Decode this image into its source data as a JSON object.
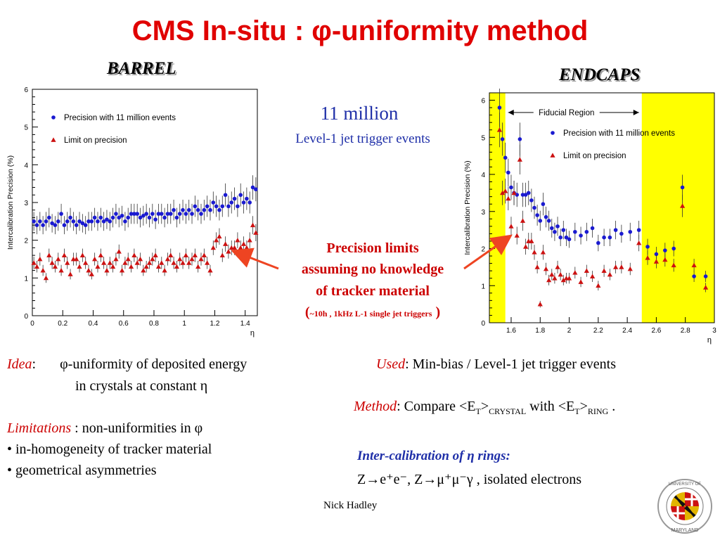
{
  "title": "CMS In-situ :  φ-uniformity method",
  "barrel_label": "BARREL",
  "endcap_label": "ENDCAPS",
  "events_big": "11 million",
  "events_small": "Level-1 jet trigger events",
  "callout": {
    "line1": "Precision limits",
    "line2": "assuming no knowledge",
    "line3": "of tracker material",
    "line4_open": "(",
    "line4_small": "~10h , 1kHz L-1 single jet triggers",
    "line4_close": " )"
  },
  "idea": {
    "key": "Idea",
    "colon": ":",
    "line1": "φ-uniformity of deposited energy",
    "line2": "in crystals at constant η"
  },
  "limitations": {
    "key": "Limitations",
    "rest": " : non-uniformities in φ",
    "bullet1": "• in-homogeneity of tracker material",
    "bullet2": "• geometrical asymmetries"
  },
  "used": {
    "key": "Used",
    "rest": ":  Min-bias / Level-1 jet trigger events"
  },
  "method": {
    "key": "Method",
    "t1": ": Compare <E",
    "s1": "T",
    "t2": ">",
    "s2": "CRYSTAL",
    "t3": " with <E",
    "s3": "T",
    "t4": ">",
    "s4": "RING",
    "t5": " ."
  },
  "intercal": {
    "heading": "Inter-calibration of η rings:",
    "body": "Z→e⁺e⁻, Z→μ⁺μ⁻γ , isolated electrons"
  },
  "author": "Nick Hadley",
  "logo_text": "UNIVERSITY OF MARYLAND",
  "colors": {
    "title": "#e00000",
    "blue_marker": "#1a1ad0",
    "red_marker": "#cc1111",
    "fiducial_outside": "#ffff00",
    "callout": "#cc0000",
    "arrow": "#ee4422"
  },
  "chart_data": [
    {
      "type": "scatter",
      "panel": "BARREL",
      "ylabel": "Intercalibration Precision (%)",
      "xlabel": "η",
      "xlim": [
        0,
        1.48
      ],
      "ylim": [
        0,
        6
      ],
      "x_ticks": [
        "0",
        "0.2",
        "0.4",
        "0.6",
        "0.8",
        "1",
        "1.2",
        "1.4"
      ],
      "y_ticks": [
        "0",
        "1",
        "2",
        "3",
        "4",
        "5",
        "6"
      ],
      "legend_position": "top-left",
      "series": [
        {
          "name": "Precision with 11 million events",
          "marker": "circle",
          "color": "#1a1ad0",
          "x": [
            0.01,
            0.03,
            0.05,
            0.07,
            0.09,
            0.11,
            0.13,
            0.15,
            0.17,
            0.19,
            0.21,
            0.23,
            0.25,
            0.27,
            0.29,
            0.31,
            0.33,
            0.35,
            0.37,
            0.39,
            0.41,
            0.43,
            0.45,
            0.47,
            0.49,
            0.51,
            0.53,
            0.55,
            0.57,
            0.59,
            0.61,
            0.63,
            0.65,
            0.67,
            0.69,
            0.71,
            0.73,
            0.75,
            0.77,
            0.79,
            0.81,
            0.83,
            0.85,
            0.87,
            0.89,
            0.91,
            0.93,
            0.95,
            0.97,
            0.99,
            1.01,
            1.03,
            1.05,
            1.07,
            1.09,
            1.11,
            1.13,
            1.15,
            1.17,
            1.19,
            1.21,
            1.23,
            1.25,
            1.27,
            1.29,
            1.31,
            1.33,
            1.35,
            1.37,
            1.39,
            1.41,
            1.43,
            1.45,
            1.47
          ],
          "y": [
            2.5,
            2.4,
            2.5,
            2.4,
            2.5,
            2.6,
            2.45,
            2.4,
            2.5,
            2.7,
            2.4,
            2.5,
            2.6,
            2.5,
            2.4,
            2.5,
            2.45,
            2.4,
            2.5,
            2.5,
            2.6,
            2.5,
            2.6,
            2.5,
            2.55,
            2.5,
            2.6,
            2.7,
            2.6,
            2.65,
            2.5,
            2.6,
            2.7,
            2.7,
            2.7,
            2.6,
            2.65,
            2.7,
            2.6,
            2.7,
            2.55,
            2.7,
            2.7,
            2.6,
            2.7,
            2.7,
            2.8,
            2.6,
            2.7,
            2.8,
            2.7,
            2.8,
            2.7,
            2.9,
            2.8,
            2.7,
            2.8,
            2.9,
            2.8,
            3.0,
            2.9,
            2.8,
            2.9,
            3.2,
            2.9,
            3.0,
            3.1,
            2.9,
            3.2,
            3.0,
            3.1,
            3.0,
            3.4,
            3.35
          ]
        },
        {
          "name": "Limit on precision",
          "marker": "triangle",
          "color": "#cc1111",
          "x": [
            0.01,
            0.03,
            0.05,
            0.07,
            0.09,
            0.11,
            0.13,
            0.15,
            0.17,
            0.19,
            0.21,
            0.23,
            0.25,
            0.27,
            0.29,
            0.31,
            0.33,
            0.35,
            0.37,
            0.39,
            0.41,
            0.43,
            0.45,
            0.47,
            0.49,
            0.51,
            0.53,
            0.55,
            0.57,
            0.59,
            0.61,
            0.63,
            0.65,
            0.67,
            0.69,
            0.71,
            0.73,
            0.75,
            0.77,
            0.79,
            0.81,
            0.83,
            0.85,
            0.87,
            0.89,
            0.91,
            0.93,
            0.95,
            0.97,
            0.99,
            1.01,
            1.03,
            1.05,
            1.07,
            1.09,
            1.11,
            1.13,
            1.15,
            1.17,
            1.19,
            1.21,
            1.23,
            1.25,
            1.27,
            1.29,
            1.31,
            1.33,
            1.35,
            1.37,
            1.39,
            1.41,
            1.43,
            1.45,
            1.47
          ],
          "y": [
            1.4,
            1.3,
            1.5,
            1.2,
            1.0,
            1.6,
            1.4,
            1.3,
            1.5,
            1.2,
            1.6,
            1.4,
            1.1,
            1.5,
            1.5,
            1.3,
            1.6,
            1.4,
            1.2,
            1.1,
            1.5,
            1.3,
            1.6,
            1.4,
            1.2,
            1.4,
            1.3,
            1.5,
            1.7,
            1.2,
            1.4,
            1.5,
            1.3,
            1.6,
            1.4,
            1.5,
            1.2,
            1.3,
            1.4,
            1.5,
            1.6,
            1.3,
            1.4,
            1.2,
            1.5,
            1.6,
            1.4,
            1.3,
            1.5,
            1.4,
            1.6,
            1.4,
            1.5,
            1.6,
            1.3,
            1.5,
            1.6,
            1.4,
            1.2,
            1.8,
            2.0,
            2.1,
            1.6,
            1.9,
            1.7,
            1.8,
            1.8,
            2.0,
            1.8,
            1.9,
            1.8,
            2.0,
            2.4,
            2.2
          ]
        }
      ]
    },
    {
      "type": "scatter",
      "panel": "ENDCAPS",
      "ylabel": "Intercalibration Precision (%)",
      "xlabel": "η",
      "xlim": [
        1.45,
        3.0
      ],
      "ylim": [
        0,
        6.2
      ],
      "x_ticks": [
        "1.6",
        "1.8",
        "2",
        "2.2",
        "2.4",
        "2.6",
        "2.8",
        "3"
      ],
      "y_ticks": [
        "0",
        "1",
        "2",
        "3",
        "4",
        "5",
        "6"
      ],
      "legend_position": "top-right",
      "fiducial_label": "Fiducial Region",
      "fiducial_range": [
        1.56,
        2.5
      ],
      "series": [
        {
          "name": "Precision with 11 million events",
          "marker": "circle",
          "color": "#1a1ad0",
          "x": [
            1.52,
            1.54,
            1.56,
            1.58,
            1.6,
            1.62,
            1.64,
            1.66,
            1.68,
            1.7,
            1.72,
            1.74,
            1.76,
            1.78,
            1.8,
            1.82,
            1.84,
            1.86,
            1.88,
            1.9,
            1.92,
            1.94,
            1.96,
            1.98,
            2.0,
            2.04,
            2.08,
            2.12,
            2.16,
            2.2,
            2.24,
            2.28,
            2.32,
            2.36,
            2.42,
            2.48,
            2.54,
            2.6,
            2.66,
            2.72,
            2.78,
            2.86,
            2.94
          ],
          "y": [
            5.8,
            4.95,
            4.45,
            4.05,
            3.65,
            3.5,
            3.45,
            4.95,
            3.45,
            3.45,
            3.5,
            3.3,
            3.1,
            2.9,
            2.75,
            3.2,
            2.85,
            2.75,
            2.55,
            2.45,
            2.6,
            2.3,
            2.5,
            2.3,
            2.25,
            2.45,
            2.35,
            2.45,
            2.55,
            2.15,
            2.3,
            2.3,
            2.5,
            2.4,
            2.45,
            2.5,
            2.05,
            1.85,
            1.95,
            2.0,
            3.65,
            1.25,
            1.25
          ]
        },
        {
          "name": "Limit on precision",
          "marker": "triangle",
          "color": "#cc1111",
          "x": [
            1.52,
            1.54,
            1.56,
            1.58,
            1.6,
            1.62,
            1.64,
            1.66,
            1.68,
            1.7,
            1.72,
            1.74,
            1.76,
            1.78,
            1.8,
            1.82,
            1.84,
            1.86,
            1.88,
            1.9,
            1.92,
            1.94,
            1.96,
            1.98,
            2.0,
            2.04,
            2.08,
            2.12,
            2.16,
            2.2,
            2.24,
            2.28,
            2.32,
            2.36,
            2.42,
            2.48,
            2.54,
            2.6,
            2.66,
            2.72,
            2.78,
            2.86,
            2.94
          ],
          "y": [
            5.2,
            3.5,
            3.55,
            3.35,
            2.6,
            3.5,
            2.35,
            4.4,
            2.75,
            2.05,
            2.2,
            2.2,
            1.9,
            1.5,
            0.5,
            1.9,
            1.45,
            1.15,
            1.3,
            1.2,
            1.5,
            1.3,
            1.15,
            1.2,
            1.2,
            1.35,
            1.1,
            1.4,
            1.25,
            1.0,
            1.4,
            1.3,
            1.5,
            1.5,
            1.45,
            2.15,
            1.75,
            1.65,
            1.7,
            1.55,
            3.15,
            1.55,
            0.95
          ]
        }
      ]
    }
  ]
}
